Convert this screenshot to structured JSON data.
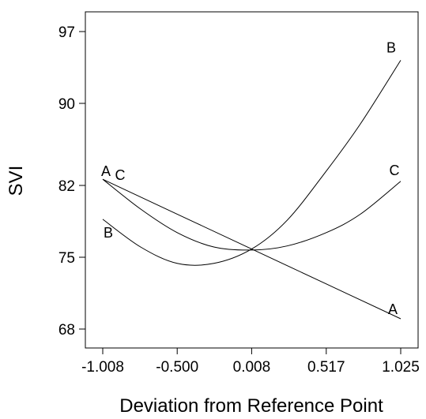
{
  "chart_data": {
    "type": "line",
    "title": "",
    "xlabel": "Deviation from Reference Point",
    "ylabel": "SVI",
    "xlim": [
      -1.008,
      1.025
    ],
    "ylim": [
      65.3,
      98.8
    ],
    "x_ticks": [
      {
        "value": -1.008,
        "label": "-1.008"
      },
      {
        "value": -0.5,
        "label": "-0.500"
      },
      {
        "value": 0.008,
        "label": "0.008"
      },
      {
        "value": 0.517,
        "label": "0.517"
      },
      {
        "value": 1.025,
        "label": "1.025"
      }
    ],
    "y_ticks": [
      {
        "value": 68,
        "label": "68"
      },
      {
        "value": 75,
        "label": "75"
      },
      {
        "value": 82,
        "label": "82"
      },
      {
        "value": 90,
        "label": "90"
      },
      {
        "value": 97,
        "label": "97"
      }
    ],
    "grid": false,
    "legend": "none",
    "line_color": "#000000",
    "series": [
      {
        "label_start": "A",
        "label_end": "A",
        "x": [
          -1.008,
          -0.5,
          0.008,
          0.517,
          1.025
        ],
        "y": [
          82.6,
          79.2,
          75.8,
          72.4,
          69.0
        ]
      },
      {
        "label_start": "B",
        "label_end": "B",
        "x": [
          -1.008,
          -0.75,
          -0.5,
          -0.25,
          0.008,
          0.25,
          0.517,
          0.75,
          1.025
        ],
        "y": [
          78.7,
          76.0,
          74.4,
          74.4,
          75.8,
          78.6,
          83.4,
          88.0,
          94.2
        ]
      },
      {
        "label_start": "C",
        "label_end": "C",
        "x": [
          -1.008,
          -0.75,
          -0.5,
          -0.25,
          0.008,
          0.25,
          0.517,
          0.75,
          1.025
        ],
        "y": [
          82.6,
          79.7,
          77.4,
          76.0,
          75.7,
          76.1,
          77.4,
          79.2,
          82.4
        ]
      }
    ]
  }
}
